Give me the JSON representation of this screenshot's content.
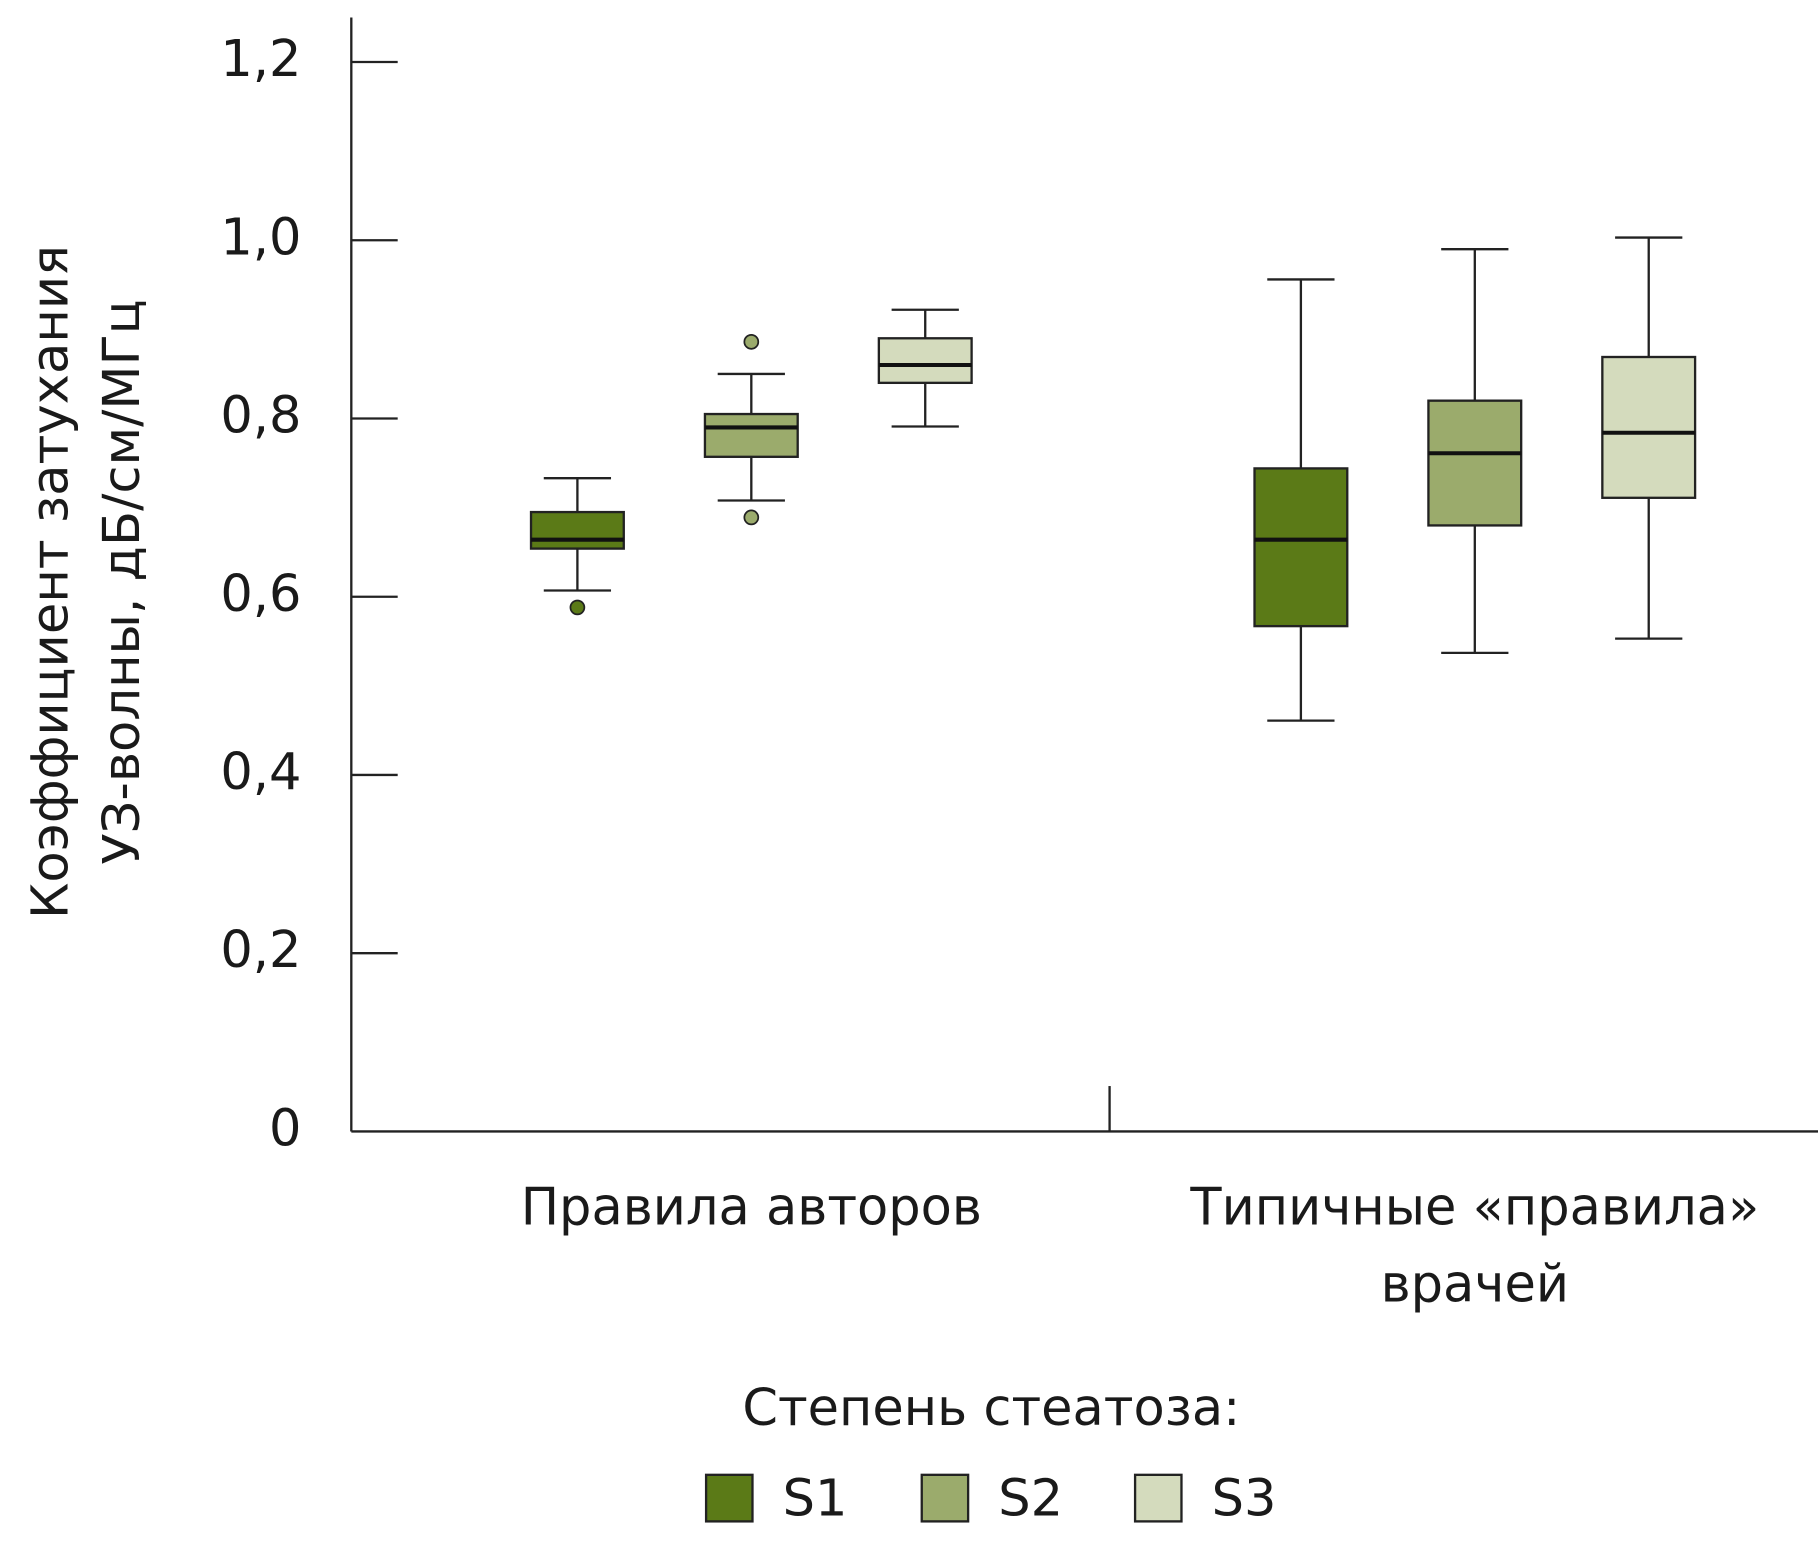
{
  "chart_data": {
    "type": "box",
    "y_label": [
      "Коэффициент затухания",
      "УЗ-волны, дБ/см/МГц"
    ],
    "categories": [
      "Правила авторов",
      "Типичные «правила» врачей"
    ],
    "ylim": [
      0,
      1.25
    ],
    "yticks": [
      0,
      {
        "value": 0.2,
        "label": "0,2"
      },
      {
        "value": 0.4,
        "label": "0,4"
      },
      {
        "value": 0.6,
        "label": "0,6"
      },
      {
        "value": 0.8,
        "label": "0,8"
      },
      {
        "value": 1.0,
        "label": "1,0"
      },
      {
        "value": 1.2,
        "label": "1,2"
      }
    ],
    "legend_title": "Степень стеатоза:",
    "series": [
      {
        "name": "S1",
        "color": "#5b7a17",
        "values": [
          {
            "whislo": 0.607,
            "q1": 0.654,
            "med": 0.664,
            "q3": 0.695,
            "whishi": 0.733,
            "fliers": [
              0.588
            ]
          },
          {
            "whislo": 0.461,
            "q1": 0.567,
            "med": 0.664,
            "q3": 0.744,
            "whishi": 0.956,
            "fliers": []
          }
        ]
      },
      {
        "name": "S2",
        "color": "#9bab6c",
        "values": [
          {
            "whislo": 0.708,
            "q1": 0.757,
            "med": 0.79,
            "q3": 0.805,
            "whishi": 0.85,
            "fliers": [
              0.886,
              0.689
            ]
          },
          {
            "whislo": 0.537,
            "q1": 0.68,
            "med": 0.761,
            "q3": 0.82,
            "whishi": 0.99,
            "fliers": []
          }
        ]
      },
      {
        "name": "S3",
        "color": "#d4dbbd",
        "values": [
          {
            "whislo": 0.791,
            "q1": 0.84,
            "med": 0.86,
            "q3": 0.89,
            "whishi": 0.922,
            "fliers": []
          },
          {
            "whislo": 0.553,
            "q1": 0.711,
            "med": 0.784,
            "q3": 0.869,
            "whishi": 1.003,
            "fliers": []
          }
        ]
      }
    ]
  }
}
